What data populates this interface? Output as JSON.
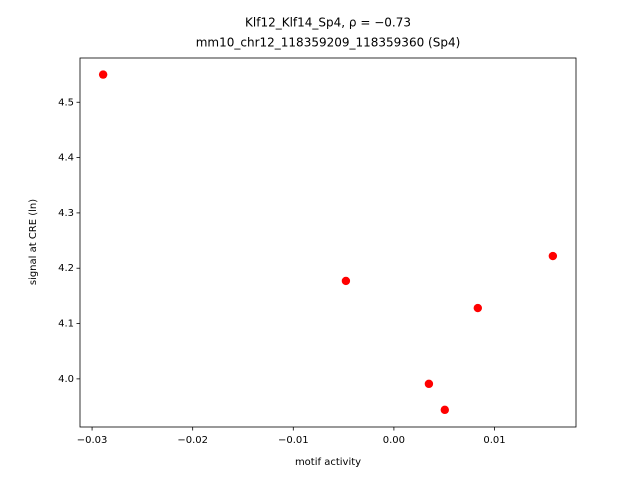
{
  "chart_data": {
    "type": "scatter",
    "title": "Klf12_Klf14_Sp4, ρ = −0.73",
    "subtitle": "mm10_chr12_118359209_118359360 (Sp4)",
    "x_label": "motif activity",
    "y_label": "signal at CRE (ln)",
    "color": "#ff0000",
    "x": [
      -0.0289,
      -0.00477,
      0.00348,
      0.00506,
      0.00834,
      0.0158
    ],
    "values": [
      4.55,
      4.177,
      3.991,
      3.944,
      4.128,
      4.222
    ],
    "xlim": [
      -0.0312,
      0.0181
    ],
    "ylim": [
      3.913,
      4.58
    ],
    "xticks": [
      {
        "value": -0.03,
        "label": "−0.03"
      },
      {
        "value": -0.02,
        "label": "−0.02"
      },
      {
        "value": -0.01,
        "label": "−0.01"
      },
      {
        "value": 0,
        "label": "0.00"
      },
      {
        "value": 0.01,
        "label": "0.01"
      }
    ],
    "yticks": [
      {
        "value": 4.0,
        "label": "4.0"
      },
      4.1,
      4.2,
      4.3,
      4.4,
      4.5
    ]
  }
}
